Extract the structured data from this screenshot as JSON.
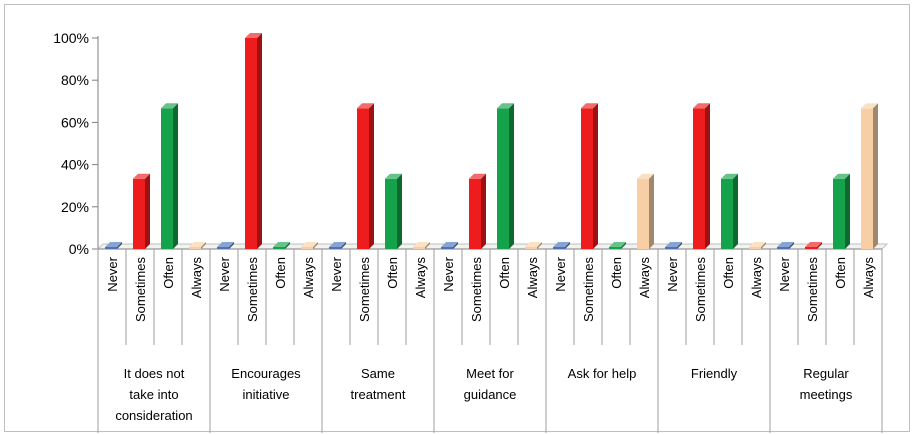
{
  "chart_data": {
    "type": "bar",
    "subtype": "3d-clustered-column",
    "ylim": [
      0,
      100
    ],
    "yticks": [
      "0%",
      "20%",
      "40%",
      "60%",
      "80%",
      "100%"
    ],
    "grid": false,
    "legend": "none",
    "categories": [
      {
        "label_lines": [
          "It does not",
          "take into",
          "consideration"
        ],
        "values": [
          0,
          33.3,
          66.7,
          0
        ]
      },
      {
        "label_lines": [
          "Encourages",
          "initiative"
        ],
        "values": [
          0,
          100,
          0,
          0
        ]
      },
      {
        "label_lines": [
          "Same",
          "treatment"
        ],
        "values": [
          0,
          66.7,
          33.3,
          0
        ]
      },
      {
        "label_lines": [
          "Meet for",
          "guidance"
        ],
        "values": [
          0,
          33.3,
          66.7,
          0
        ]
      },
      {
        "label_lines": [
          "Ask for help"
        ],
        "values": [
          0,
          66.7,
          0,
          33.3
        ]
      },
      {
        "label_lines": [
          "Friendly"
        ],
        "values": [
          0,
          66.7,
          33.3,
          0
        ]
      },
      {
        "label_lines": [
          "Regular",
          "meetings"
        ],
        "values": [
          0,
          0,
          33.3,
          66.7
        ]
      }
    ],
    "series": [
      {
        "name": "Never",
        "color": "#4a72b8"
      },
      {
        "name": "Sometimes",
        "color": "#ee1c1c"
      },
      {
        "name": "Often",
        "color": "#14a24a"
      },
      {
        "name": "Always",
        "color": "#f8cfa4"
      }
    ]
  }
}
